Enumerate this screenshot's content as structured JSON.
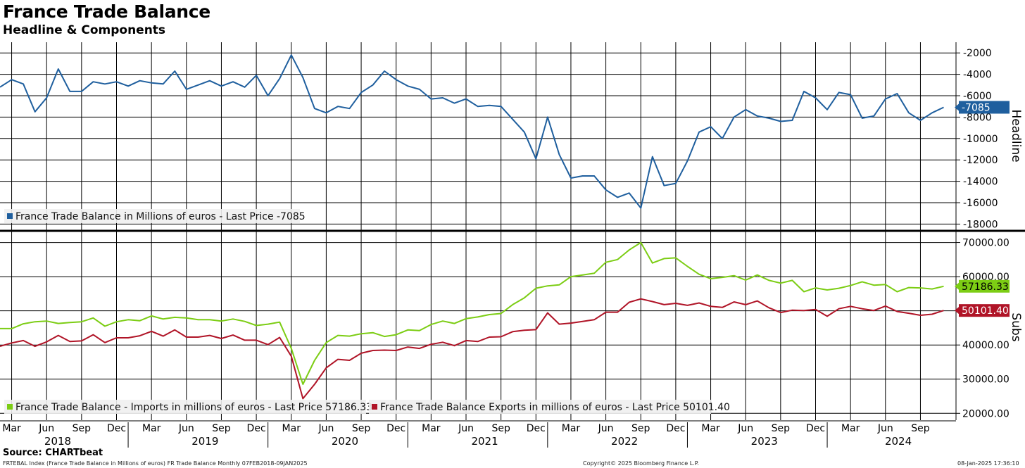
{
  "header": {
    "title": "France Trade Balance",
    "subtitle": "Headline & Components"
  },
  "footer": {
    "source": "Source: CHARTbeat",
    "info": "FRTEBAL Index (France Trade Balance in Millions of euros) FR Trade Balance  Monthly 07FEB2018-09JAN2025",
    "copyright": "Copyright© 2025 Bloomberg Finance L.P.",
    "timestamp": "08-Jan-2025 17:36:10"
  },
  "colors": {
    "headline": "#1f5f9e",
    "imports": "#7ccd14",
    "exports": "#b01427",
    "grid": "#000000"
  },
  "chart_data": [
    {
      "type": "line",
      "axis_name": "Headline",
      "ylim": [
        -18500,
        -1000
      ],
      "yticks": [
        -2000,
        -4000,
        -6000,
        -8000,
        -10000,
        -12000,
        -14000,
        -16000,
        -18000
      ],
      "ytick_labels": [
        "-2000",
        "-4000",
        "-6000",
        "-8000",
        "-10000",
        "-12000",
        "-14000",
        "-16000",
        "-18000"
      ],
      "grid": true,
      "series": [
        {
          "name": "France Trade Balance in Millions of euros",
          "legend": "France Trade Balance in Millions of euros - Last Price -7085",
          "last_label": "-7085",
          "values": [
            -5200,
            -4500,
            -4900,
            -7500,
            -6200,
            -3500,
            -5600,
            -5600,
            -4700,
            -4900,
            -4700,
            -5100,
            -4600,
            -4800,
            -4900,
            -3700,
            -5400,
            -5000,
            -4600,
            -5100,
            -4700,
            -5200,
            -4100,
            -6000,
            -4400,
            -2200,
            -4300,
            -7200,
            -7600,
            -7000,
            -7200,
            -5700,
            -5000,
            -3700,
            -4500,
            -5100,
            -5400,
            -6300,
            -6200,
            -6700,
            -6300,
            -7000,
            -6900,
            -7000,
            -8200,
            -9400,
            -11900,
            -8000,
            -11500,
            -13700,
            -13500,
            -13500,
            -14800,
            -15500,
            -15100,
            -16500,
            -11700,
            -14400,
            -14200,
            -12100,
            -9400,
            -8900,
            -10000,
            -8000,
            -7300,
            -7900,
            -8100,
            -8400,
            -8300,
            -5600,
            -6200,
            -7300,
            -5700,
            -5900,
            -8100,
            -7900,
            -6300,
            -5800,
            -7600,
            -8300,
            -7600,
            -7085
          ]
        }
      ]
    },
    {
      "type": "line",
      "axis_name": "Subs",
      "ylim": [
        18000,
        73000
      ],
      "yticks": [
        20000,
        30000,
        40000,
        50000,
        60000,
        70000
      ],
      "ytick_labels": [
        "20000.00",
        "30000.00",
        "40000.00",
        "50000.00",
        "60000.00",
        "70000.00"
      ],
      "grid": true,
      "series": [
        {
          "name": "France Trade Balance - Imports in millions of euros",
          "legend": "France Trade Balance - Imports in millions of euros - Last Price 57186.33",
          "last_label": "57186.33",
          "values": [
            44800,
            44800,
            46200,
            46800,
            47000,
            46300,
            46600,
            46800,
            47900,
            45500,
            46800,
            47400,
            47100,
            48500,
            47600,
            48100,
            47900,
            47400,
            47400,
            47000,
            47600,
            46900,
            45700,
            46100,
            46700,
            39000,
            28500,
            35500,
            40700,
            42800,
            42600,
            43300,
            43600,
            42500,
            43000,
            44400,
            44200,
            46000,
            47000,
            46300,
            47700,
            48200,
            48900,
            49200,
            51800,
            53800,
            56600,
            57300,
            57600,
            60000,
            60500,
            61000,
            64200,
            65000,
            67800,
            70000,
            64000,
            65300,
            65500,
            63000,
            60700,
            59400,
            59800,
            60300,
            59000,
            60500,
            58900,
            58100,
            58900,
            55600,
            56700,
            56100,
            56600,
            57400,
            58500,
            57500,
            57700,
            55600,
            56800,
            56700,
            56400,
            57186
          ]
        },
        {
          "name": "France Trade Balance Exports in millions of euros",
          "legend": "France Trade Balance Exports in millions of euros - Last Price 50101.40",
          "last_label": "50101.40",
          "values": [
            39600,
            40600,
            41300,
            39600,
            40900,
            42800,
            41000,
            41200,
            43000,
            40700,
            42100,
            42100,
            42700,
            44000,
            42600,
            44400,
            42300,
            42300,
            42800,
            41900,
            42900,
            41400,
            41400,
            40100,
            42200,
            36700,
            24300,
            28500,
            33300,
            35800,
            35500,
            37600,
            38400,
            38500,
            38400,
            39400,
            39000,
            40200,
            40800,
            39800,
            41300,
            41000,
            42300,
            42400,
            43900,
            44300,
            44500,
            49400,
            46100,
            46400,
            46900,
            47400,
            49600,
            49600,
            52500,
            53500,
            52700,
            51800,
            52200,
            51600,
            52300,
            51300,
            51000,
            52600,
            51800,
            52900,
            50900,
            49500,
            50200,
            50100,
            50400,
            48400,
            50600,
            51300,
            50600,
            50100,
            51400,
            49800,
            49300,
            48700,
            49000,
            50101
          ]
        }
      ]
    }
  ],
  "x_axis": {
    "month_ticks": [
      "Mar",
      "Jun",
      "Sep",
      "Dec",
      "Mar",
      "Jun",
      "Sep",
      "Dec",
      "Mar",
      "Jun",
      "Sep",
      "Dec",
      "Mar",
      "Jun",
      "Sep",
      "Dec",
      "Mar",
      "Jun",
      "Sep",
      "Dec",
      "Mar",
      "Jun",
      "Sep",
      "Dec",
      "Mar",
      "Jun",
      "Sep"
    ],
    "years": [
      "2018",
      "2019",
      "2020",
      "2021",
      "2022",
      "2023",
      "2024"
    ]
  }
}
